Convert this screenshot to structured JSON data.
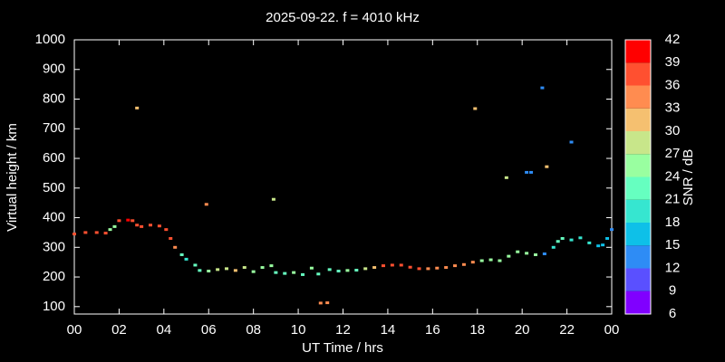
{
  "chart_data": {
    "type": "scatter",
    "title": "2025-09-22. f = 4010 kHz",
    "x_label": "UT Time / hrs",
    "y_label": "Virtual height / km",
    "xlim": [
      0,
      24
    ],
    "ylim": [
      75,
      1000
    ],
    "xticks": [
      {
        "value": 0,
        "label": "00"
      },
      {
        "value": 2,
        "label": "02"
      },
      {
        "value": 4,
        "label": "04"
      },
      {
        "value": 6,
        "label": "06"
      },
      {
        "value": 8,
        "label": "08"
      },
      10,
      12,
      14,
      16,
      18,
      20,
      22,
      {
        "value": 24,
        "label": "00"
      }
    ],
    "yticks": [
      100,
      200,
      300,
      400,
      500,
      600,
      700,
      800,
      900,
      1000
    ],
    "x": [
      0,
      0.5,
      1,
      1.4,
      1.6,
      1.8,
      2.0,
      2.4,
      2.6,
      2.8,
      3.0,
      3.4,
      3.8,
      4.1,
      4.3,
      4.5,
      4.8,
      5.0,
      5.4,
      5.6,
      6.0,
      6.4,
      6.8,
      7.2,
      7.6,
      8.0,
      8.4,
      8.8,
      9.0,
      9.4,
      9.8,
      10.2,
      10.6,
      10.9,
      11.0,
      11.3,
      11.4,
      11.8,
      12.2,
      12.6,
      13.0,
      13.4,
      13.8,
      14.2,
      14.6,
      15.0,
      15.4,
      15.8,
      16.2,
      16.6,
      17.0,
      17.4,
      17.8,
      18.2,
      18.6,
      19.0,
      19.4,
      19.8,
      20.2,
      20.6,
      21.0,
      21.4,
      21.6,
      21.8,
      22.2,
      22.6,
      23.0,
      23.4,
      23.6,
      23.8,
      24.0,
      2.8,
      5.9,
      8.9,
      17.9,
      19.3,
      20.2,
      20.4,
      20.9,
      21.1,
      22.2
    ],
    "y": [
      345,
      350,
      350,
      348,
      360,
      370,
      390,
      392,
      390,
      375,
      370,
      375,
      372,
      360,
      330,
      300,
      275,
      260,
      240,
      222,
      220,
      225,
      228,
      222,
      232,
      218,
      232,
      238,
      215,
      212,
      215,
      208,
      230,
      210,
      112,
      113,
      225,
      220,
      222,
      223,
      228,
      232,
      238,
      240,
      240,
      233,
      228,
      228,
      230,
      232,
      238,
      242,
      250,
      255,
      258,
      255,
      270,
      285,
      280,
      275,
      278,
      300,
      320,
      330,
      325,
      332,
      315,
      305,
      308,
      330,
      360,
      770,
      445,
      462,
      768,
      535,
      553,
      553,
      838,
      572,
      655
    ],
    "snr": [
      36,
      36,
      36,
      36,
      24,
      24,
      36,
      39,
      36,
      36,
      36,
      36,
      36,
      36,
      36,
      33,
      21,
      18,
      21,
      21,
      24,
      27,
      27,
      30,
      27,
      24,
      24,
      24,
      21,
      21,
      24,
      21,
      24,
      21,
      33,
      33,
      21,
      21,
      24,
      21,
      27,
      30,
      36,
      36,
      36,
      36,
      36,
      33,
      33,
      33,
      33,
      33,
      33,
      24,
      24,
      24,
      24,
      24,
      24,
      24,
      12,
      18,
      21,
      21,
      18,
      18,
      18,
      15,
      15,
      15,
      12,
      30,
      33,
      27,
      30,
      27,
      12,
      12,
      12,
      30,
      12
    ],
    "colorbar": {
      "label": "SNR / dB",
      "clim": [
        6,
        42
      ],
      "ticks": [
        6,
        9,
        12,
        15,
        18,
        21,
        24,
        27,
        30,
        33,
        36,
        39,
        42
      ],
      "colors": [
        "#8000ff",
        "#5a50ff",
        "#2e8cf5",
        "#0ec0e8",
        "#36e6d0",
        "#66ffc0",
        "#99ffa0",
        "#c8e68a",
        "#f5c070",
        "#ff8c50",
        "#ff5030",
        "#ff0000"
      ]
    }
  }
}
